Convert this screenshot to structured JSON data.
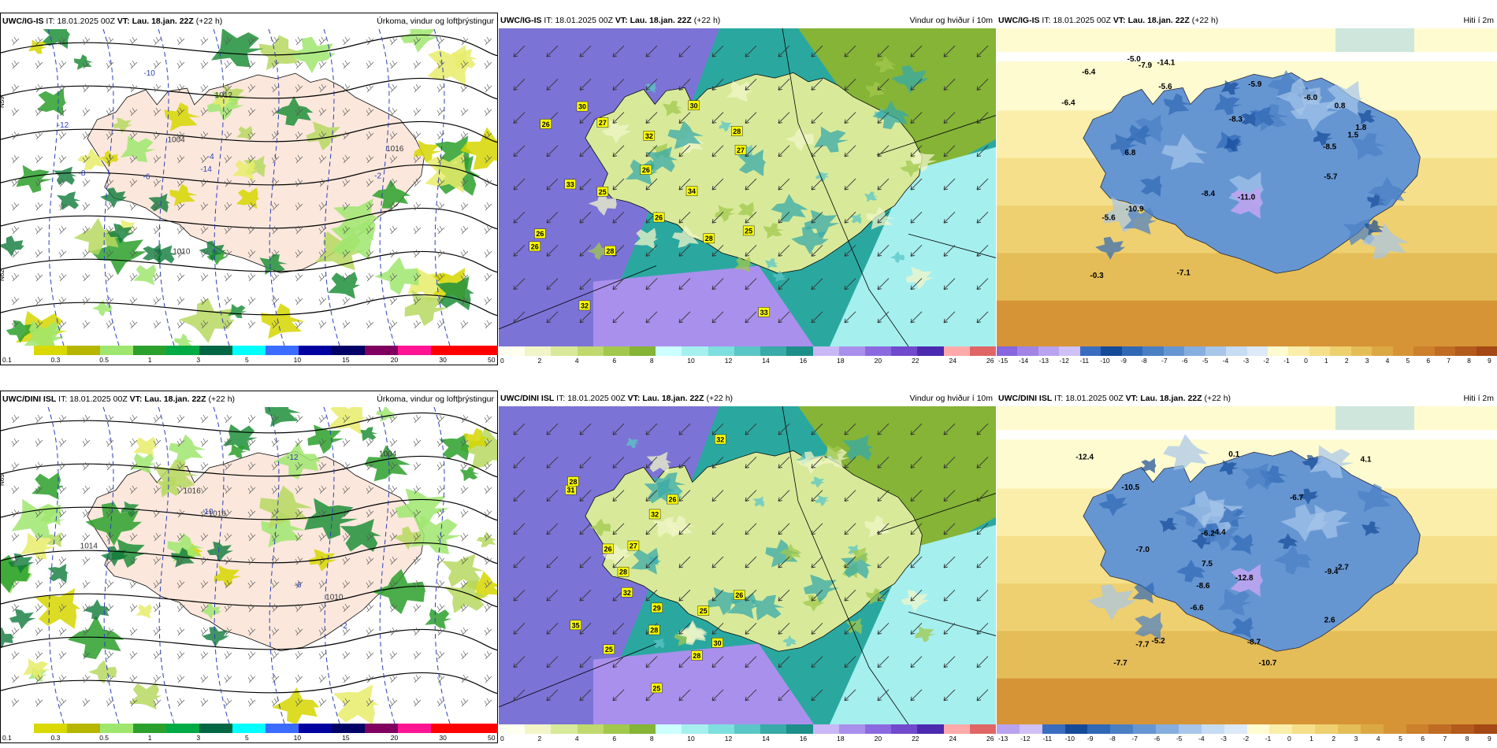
{
  "rows": [
    {
      "model": "UWC/IG-IS",
      "panels": [
        {
          "kind": "precip",
          "model": "UWC/IG-IS",
          "it_label": "IT:",
          "it": "18.01.2025 00Z",
          "vt_label": "VT:",
          "vt": "Lau. 18.jan. 22Z",
          "lead": "(+22 h)",
          "title": "Úrkoma, vindur og loftþrýstingur"
        },
        {
          "kind": "wind",
          "model": "UWC/IG-IS",
          "it_label": "IT:",
          "it": "18.01.2025 00Z",
          "vt_label": "VT:",
          "vt": "Lau. 18.jan. 22Z",
          "lead": "(+22 h)",
          "title": "Vindur og hviður í 10m"
        },
        {
          "kind": "temp",
          "model": "UWC/IG-IS",
          "it_label": "IT:",
          "it": "18.01.2025 00Z",
          "vt_label": "VT:",
          "vt": "Lau. 18.jan. 22Z",
          "lead": "(+22 h)",
          "title": "Hiti í 2m"
        }
      ],
      "precip_labels": {
        "isobars": [
          "1016",
          "1010",
          "1004",
          "1012"
        ],
        "neg": [
          "-14",
          "-12",
          "-10",
          "-8",
          "-6",
          "-4",
          "-2"
        ],
        "edge": [
          "N59",
          "N62"
        ]
      },
      "wind_gusts": [
        "34",
        "28",
        "26",
        "32",
        "33",
        "25",
        "28",
        "30",
        "27",
        "32",
        "30",
        "26",
        "26",
        "27",
        "28",
        "26",
        "33",
        "26",
        "25"
      ],
      "temp_labels": [
        "-5.6",
        "-8.4",
        "-5.6",
        "-5.9",
        "-6.4",
        "-8.5",
        "-6.0",
        "-7.9",
        "-10.9",
        "0.8",
        "-7.1",
        "-8.3",
        "-0.3",
        "-14.1",
        "-11.0",
        "1.8",
        "-5.0",
        "-5.7",
        "1.5",
        "-6.4",
        "6.8"
      ]
    },
    {
      "model": "UWC/DINI ISL",
      "panels": [
        {
          "kind": "precip",
          "model": "UWC/DINI ISL",
          "it_label": "IT:",
          "it": "18.01.2025 00Z",
          "vt_label": "VT:",
          "vt": "Lau. 18.jan. 22Z",
          "lead": "(+22 h)",
          "title": "Úrkoma, vindur og loftþrýstingur"
        },
        {
          "kind": "wind",
          "model": "UWC/DINI ISL",
          "it_label": "IT:",
          "it": "18.01.2025 00Z",
          "vt_label": "VT:",
          "vt": "Lau. 18.jan. 22Z",
          "lead": "(+22 h)",
          "title": "Vindur og hviður í 10m"
        },
        {
          "kind": "temp",
          "model": "UWC/DINI ISL",
          "it_label": "IT:",
          "it": "18.01.2025 00Z",
          "vt_label": "VT:",
          "vt": "Lau. 18.jan. 22Z",
          "lead": "(+22 h)",
          "title": "Hiti í 2m"
        }
      ],
      "precip_labels": {
        "isobars": [
          "1016",
          "1016",
          "1004",
          "1014",
          "1010"
        ],
        "neg": [
          "-12",
          "-6",
          "-10",
          "-2"
        ],
        "edge": [
          "N65"
        ]
      },
      "wind_gusts": [
        "29",
        "32",
        "32",
        "35",
        "31",
        "30",
        "26",
        "25",
        "28",
        "28",
        "28",
        "27",
        "25",
        "26",
        "32",
        "26",
        "28",
        "25"
      ],
      "temp_labels": [
        "-7.7",
        "-4.4",
        "-6.2",
        "-6.6",
        "-10.5",
        "-8.7",
        "-8.6",
        "-7.7",
        "-7.0",
        "-6.7",
        "4.1",
        "2.6",
        "0.1",
        "-12.4",
        "-10.7",
        "-9.4",
        "-12.8",
        "-5.2",
        "-2.7",
        "7.5"
      ]
    }
  ],
  "colorbars": {
    "precip": {
      "colors": [
        "#ffffff",
        "#d9d900",
        "#b6b600",
        "#9fe66f",
        "#2ca02c",
        "#00aa44",
        "#006644",
        "#00ffff",
        "#3b6cff",
        "#0000a0",
        "#000066",
        "#800060",
        "#ff1493",
        "#ff0000",
        "#ff0000"
      ],
      "ticks": [
        "0.1",
        "0.3",
        "0.5",
        "1",
        "3",
        "5",
        "10",
        "15",
        "20",
        "30",
        "50"
      ]
    },
    "wind": {
      "colors": [
        "#fffff0",
        "#f1f5c8",
        "#d8ea9a",
        "#bfd96e",
        "#a2c84e",
        "#85b437",
        "#ccffff",
        "#a5efef",
        "#7fdede",
        "#5bc6c6",
        "#38aaa8",
        "#1d8f89",
        "#c8b8f5",
        "#a990ec",
        "#8b6adf",
        "#7049cc",
        "#4b2ab0",
        "#ffaaaa",
        "#e06666"
      ],
      "ticks": [
        "0",
        "2",
        "4",
        "6",
        "8",
        "10",
        "12",
        "14",
        "16",
        "18",
        "20",
        "22",
        "24",
        "26"
      ]
    },
    "temp_top": {
      "colors": [
        "#8866dd",
        "#a184e6",
        "#b9a3ef",
        "#cfc0f5",
        "#3a6dbf",
        "#154a99",
        "#2f68b5",
        "#4a7fc4",
        "#6696d2",
        "#86aedf",
        "#a7c6ea",
        "#c6dcf3",
        "#dde9f7",
        "#fffbd0",
        "#fbeeaa",
        "#f5df8a",
        "#eed070",
        "#e5bd58",
        "#dca844",
        "#d69436",
        "#cc802c",
        "#c06c24",
        "#b35a1d",
        "#a44815"
      ],
      "ticks": [
        "-15",
        "-14",
        "-13",
        "-12",
        "-11",
        "-10",
        "-9",
        "-8",
        "-7",
        "-6",
        "-5",
        "-4",
        "-3",
        "-2",
        "-1",
        "0",
        "1",
        "2",
        "3",
        "4",
        "5",
        "6",
        "7",
        "8",
        "9"
      ]
    },
    "temp_bottom": {
      "colors": [
        "#b9a3ef",
        "#cfc0f5",
        "#3a6dbf",
        "#154a99",
        "#2f68b5",
        "#4a7fc4",
        "#6696d2",
        "#86aedf",
        "#a7c6ea",
        "#c6dcf3",
        "#dde9f7",
        "#fffbd0",
        "#fbeeaa",
        "#f5df8a",
        "#eed070",
        "#e5bd58",
        "#dca844",
        "#d69436",
        "#cc802c",
        "#c06c24",
        "#b35a1d",
        "#a44815"
      ],
      "ticks": [
        "-13",
        "-12",
        "-11",
        "-10",
        "-9",
        "-8",
        "-7",
        "-6",
        "-5",
        "-4",
        "-3",
        "-2",
        "-1",
        "0",
        "1",
        "2",
        "3",
        "4",
        "5",
        "6",
        "7",
        "8",
        "9"
      ]
    }
  },
  "legend_gust_label": "25"
}
